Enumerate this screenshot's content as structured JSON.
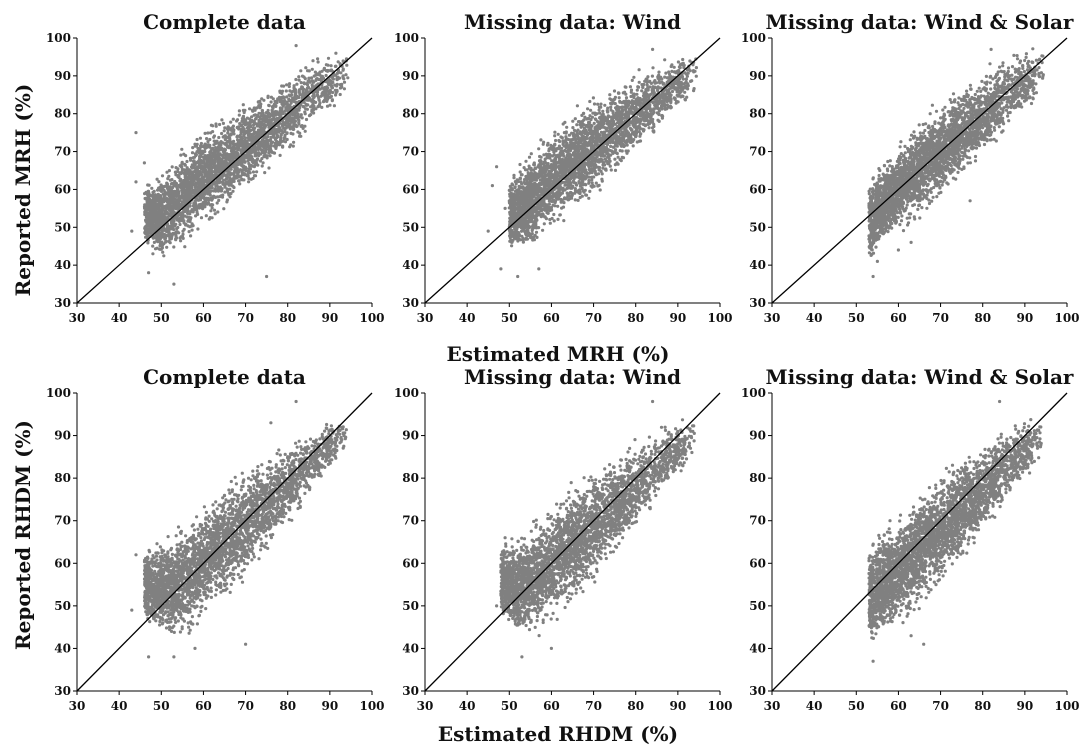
{
  "rows": [
    {
      "xlabel": "Estimated MRH (%)",
      "ylabel": "Reported MRH (%)"
    },
    {
      "xlabel": "Estimated RHDM (%)",
      "ylabel": "Reported RHDM (%)"
    }
  ],
  "chart_data": [
    {
      "type": "scatter",
      "title": "Complete data",
      "variable": "MRH",
      "xlim": [
        30,
        100
      ],
      "ylim": [
        30,
        100
      ],
      "xticks": [
        30,
        40,
        50,
        60,
        70,
        80,
        90,
        100
      ],
      "yticks": [
        30,
        40,
        50,
        60,
        70,
        80,
        90,
        100
      ],
      "grid": false,
      "point_color": "#808080",
      "line_color": "#000000",
      "reference_line": {
        "from": [
          30,
          30
        ],
        "to": [
          100,
          100
        ]
      },
      "cloud": [
        {
          "x": 46,
          "y_low": 44,
          "y_high": 62
        },
        {
          "x": 50,
          "y_low": 41,
          "y_high": 65
        },
        {
          "x": 55,
          "y_low": 44,
          "y_high": 72
        },
        {
          "x": 60,
          "y_low": 50,
          "y_high": 77
        },
        {
          "x": 65,
          "y_low": 53,
          "y_high": 80
        },
        {
          "x": 70,
          "y_low": 58,
          "y_high": 84
        },
        {
          "x": 75,
          "y_low": 63,
          "y_high": 87
        },
        {
          "x": 80,
          "y_low": 68,
          "y_high": 91
        },
        {
          "x": 85,
          "y_low": 74,
          "y_high": 95
        },
        {
          "x": 90,
          "y_low": 80,
          "y_high": 96
        },
        {
          "x": 94.5,
          "y_low": 85,
          "y_high": 98
        }
      ],
      "outliers": [
        [
          44,
          75
        ],
        [
          44,
          62
        ],
        [
          47,
          38
        ],
        [
          48,
          43
        ],
        [
          53,
          35
        ],
        [
          43,
          49
        ],
        [
          46,
          67
        ],
        [
          75,
          37
        ],
        [
          82,
          98
        ],
        [
          86,
          94
        ]
      ]
    },
    {
      "type": "scatter",
      "title": "Missing data: Wind",
      "variable": "MRH",
      "xlim": [
        30,
        100
      ],
      "ylim": [
        30,
        100
      ],
      "xticks": [
        30,
        40,
        50,
        60,
        70,
        80,
        90,
        100
      ],
      "yticks": [
        30,
        40,
        50,
        60,
        70,
        80,
        90,
        100
      ],
      "grid": false,
      "point_color": "#808080",
      "line_color": "#000000",
      "reference_line": {
        "from": [
          30,
          30
        ],
        "to": [
          100,
          100
        ]
      },
      "cloud": [
        {
          "x": 50,
          "y_low": 42,
          "y_high": 64
        },
        {
          "x": 55,
          "y_low": 43,
          "y_high": 71
        },
        {
          "x": 60,
          "y_low": 49,
          "y_high": 77
        },
        {
          "x": 65,
          "y_low": 53,
          "y_high": 81
        },
        {
          "x": 70,
          "y_low": 58,
          "y_high": 85
        },
        {
          "x": 75,
          "y_low": 63,
          "y_high": 88
        },
        {
          "x": 80,
          "y_low": 68,
          "y_high": 91
        },
        {
          "x": 85,
          "y_low": 74,
          "y_high": 94
        },
        {
          "x": 90,
          "y_low": 80,
          "y_high": 96
        },
        {
          "x": 94.5,
          "y_low": 85,
          "y_high": 98
        }
      ],
      "outliers": [
        [
          47,
          66
        ],
        [
          45,
          49
        ],
        [
          48,
          39
        ],
        [
          52,
          37
        ],
        [
          46,
          61
        ],
        [
          49,
          55
        ],
        [
          57,
          39
        ],
        [
          84,
          97
        ]
      ]
    },
    {
      "type": "scatter",
      "title": "Missing data: Wind & Solar",
      "variable": "MRH",
      "xlim": [
        30,
        100
      ],
      "ylim": [
        30,
        100
      ],
      "xticks": [
        30,
        40,
        50,
        60,
        70,
        80,
        90,
        100
      ],
      "yticks": [
        30,
        40,
        50,
        60,
        70,
        80,
        90,
        100
      ],
      "grid": false,
      "point_color": "#808080",
      "line_color": "#000000",
      "reference_line": {
        "from": [
          30,
          30
        ],
        "to": [
          100,
          100
        ]
      },
      "cloud": [
        {
          "x": 53,
          "y_low": 38,
          "y_high": 64
        },
        {
          "x": 56,
          "y_low": 45,
          "y_high": 67
        },
        {
          "x": 60,
          "y_low": 48,
          "y_high": 73
        },
        {
          "x": 65,
          "y_low": 52,
          "y_high": 79
        },
        {
          "x": 70,
          "y_low": 57,
          "y_high": 84
        },
        {
          "x": 75,
          "y_low": 62,
          "y_high": 88
        },
        {
          "x": 80,
          "y_low": 67,
          "y_high": 92
        },
        {
          "x": 85,
          "y_low": 73,
          "y_high": 95
        },
        {
          "x": 90,
          "y_low": 80,
          "y_high": 97
        },
        {
          "x": 94.5,
          "y_low": 85,
          "y_high": 99
        }
      ],
      "outliers": [
        [
          54,
          37
        ],
        [
          55,
          41
        ],
        [
          60,
          44
        ],
        [
          63,
          46
        ],
        [
          82,
          97
        ],
        [
          77,
          57
        ]
      ]
    },
    {
      "type": "scatter",
      "title": "Complete data",
      "variable": "RHDM",
      "xlim": [
        30,
        100
      ],
      "ylim": [
        30,
        100
      ],
      "xticks": [
        30,
        40,
        50,
        60,
        70,
        80,
        90,
        100
      ],
      "yticks": [
        30,
        40,
        50,
        60,
        70,
        80,
        90,
        100
      ],
      "grid": false,
      "point_color": "#808080",
      "line_color": "#000000",
      "reference_line": {
        "from": [
          30,
          30
        ],
        "to": [
          100,
          100
        ]
      },
      "cloud": [
        {
          "x": 46,
          "y_low": 45,
          "y_high": 64
        },
        {
          "x": 50,
          "y_low": 42,
          "y_high": 67
        },
        {
          "x": 55,
          "y_low": 41,
          "y_high": 70
        },
        {
          "x": 60,
          "y_low": 46,
          "y_high": 75
        },
        {
          "x": 65,
          "y_low": 51,
          "y_high": 79
        },
        {
          "x": 70,
          "y_low": 56,
          "y_high": 83
        },
        {
          "x": 75,
          "y_low": 61,
          "y_high": 86
        },
        {
          "x": 80,
          "y_low": 67,
          "y_high": 89
        },
        {
          "x": 85,
          "y_low": 74,
          "y_high": 92
        },
        {
          "x": 90,
          "y_low": 81,
          "y_high": 94
        },
        {
          "x": 94,
          "y_low": 87,
          "y_high": 95
        }
      ],
      "outliers": [
        [
          43,
          49
        ],
        [
          44,
          62
        ],
        [
          47,
          38
        ],
        [
          53,
          38
        ],
        [
          58,
          40
        ],
        [
          82,
          98
        ],
        [
          76,
          93
        ],
        [
          70,
          41
        ]
      ]
    },
    {
      "type": "scatter",
      "title": "Missing data: Wind",
      "variable": "RHDM",
      "xlim": [
        30,
        100
      ],
      "ylim": [
        30,
        100
      ],
      "xticks": [
        30,
        40,
        50,
        60,
        70,
        80,
        90,
        100
      ],
      "yticks": [
        30,
        40,
        50,
        60,
        70,
        80,
        90,
        100
      ],
      "grid": false,
      "point_color": "#808080",
      "line_color": "#000000",
      "reference_line": {
        "from": [
          30,
          30
        ],
        "to": [
          100,
          100
        ]
      },
      "cloud": [
        {
          "x": 48,
          "y_low": 46,
          "y_high": 66
        },
        {
          "x": 52,
          "y_low": 42,
          "y_high": 67
        },
        {
          "x": 56,
          "y_low": 42,
          "y_high": 71
        },
        {
          "x": 60,
          "y_low": 45,
          "y_high": 75
        },
        {
          "x": 65,
          "y_low": 50,
          "y_high": 79
        },
        {
          "x": 70,
          "y_low": 55,
          "y_high": 83
        },
        {
          "x": 75,
          "y_low": 60,
          "y_high": 86
        },
        {
          "x": 80,
          "y_low": 66,
          "y_high": 89
        },
        {
          "x": 85,
          "y_low": 73,
          "y_high": 92
        },
        {
          "x": 90,
          "y_low": 80,
          "y_high": 94
        },
        {
          "x": 94,
          "y_low": 85,
          "y_high": 95
        }
      ],
      "outliers": [
        [
          47,
          50
        ],
        [
          49,
          66
        ],
        [
          53,
          38
        ],
        [
          84,
          98
        ],
        [
          93,
          87
        ],
        [
          60,
          40
        ]
      ]
    },
    {
      "type": "scatter",
      "title": "Missing data: Wind & Solar",
      "variable": "RHDM",
      "xlim": [
        30,
        100
      ],
      "ylim": [
        30,
        100
      ],
      "xticks": [
        30,
        40,
        50,
        60,
        70,
        80,
        90,
        100
      ],
      "yticks": [
        30,
        40,
        50,
        60,
        70,
        80,
        90,
        100
      ],
      "grid": false,
      "point_color": "#808080",
      "line_color": "#000000",
      "reference_line": {
        "from": [
          30,
          30
        ],
        "to": [
          100,
          100
        ]
      },
      "cloud": [
        {
          "x": 53,
          "y_low": 38,
          "y_high": 66
        },
        {
          "x": 56,
          "y_low": 42,
          "y_high": 68
        },
        {
          "x": 60,
          "y_low": 45,
          "y_high": 72
        },
        {
          "x": 65,
          "y_low": 49,
          "y_high": 77
        },
        {
          "x": 70,
          "y_low": 54,
          "y_high": 82
        },
        {
          "x": 75,
          "y_low": 59,
          "y_high": 86
        },
        {
          "x": 80,
          "y_low": 65,
          "y_high": 89
        },
        {
          "x": 85,
          "y_low": 72,
          "y_high": 92
        },
        {
          "x": 90,
          "y_low": 79,
          "y_high": 94
        },
        {
          "x": 94,
          "y_low": 84,
          "y_high": 95
        }
      ],
      "outliers": [
        [
          54,
          37
        ],
        [
          63,
          43
        ],
        [
          66,
          41
        ],
        [
          84,
          98
        ],
        [
          93,
          87
        ],
        [
          58,
          70
        ]
      ]
    }
  ]
}
